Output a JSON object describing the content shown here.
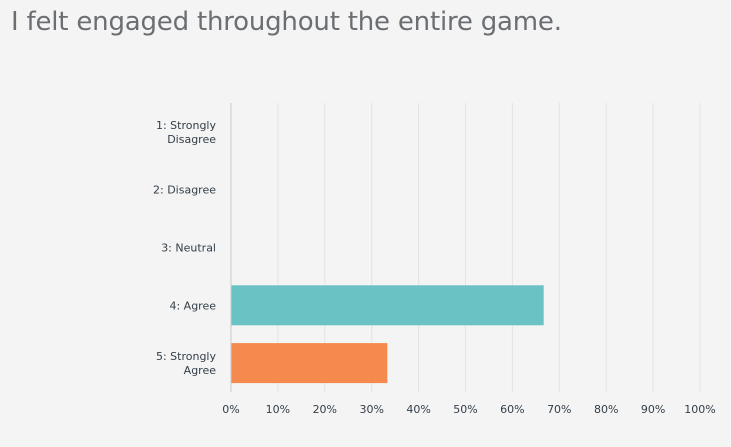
{
  "question": {
    "title": "I felt engaged throughout the entire game."
  },
  "chart_data": {
    "type": "bar",
    "orientation": "horizontal",
    "title": "I felt engaged throughout the entire game.",
    "categories": [
      [
        "1: Strongly",
        "Disagree"
      ],
      [
        "2: Disagree"
      ],
      [
        "3: Neutral"
      ],
      [
        "4: Agree"
      ],
      [
        "5: Strongly",
        "Agree"
      ]
    ],
    "values": [
      0,
      0,
      0,
      66.67,
      33.33
    ],
    "xlim": [
      0,
      100
    ],
    "xticks": [
      "0%",
      "10%",
      "20%",
      "30%",
      "40%",
      "50%",
      "60%",
      "70%",
      "80%",
      "90%",
      "100%"
    ],
    "grid": true,
    "colors": [
      "#2b4c7e",
      "#d25a4b",
      "#8a9a5b",
      "#6bc2c5",
      "#f58a4e"
    ]
  }
}
